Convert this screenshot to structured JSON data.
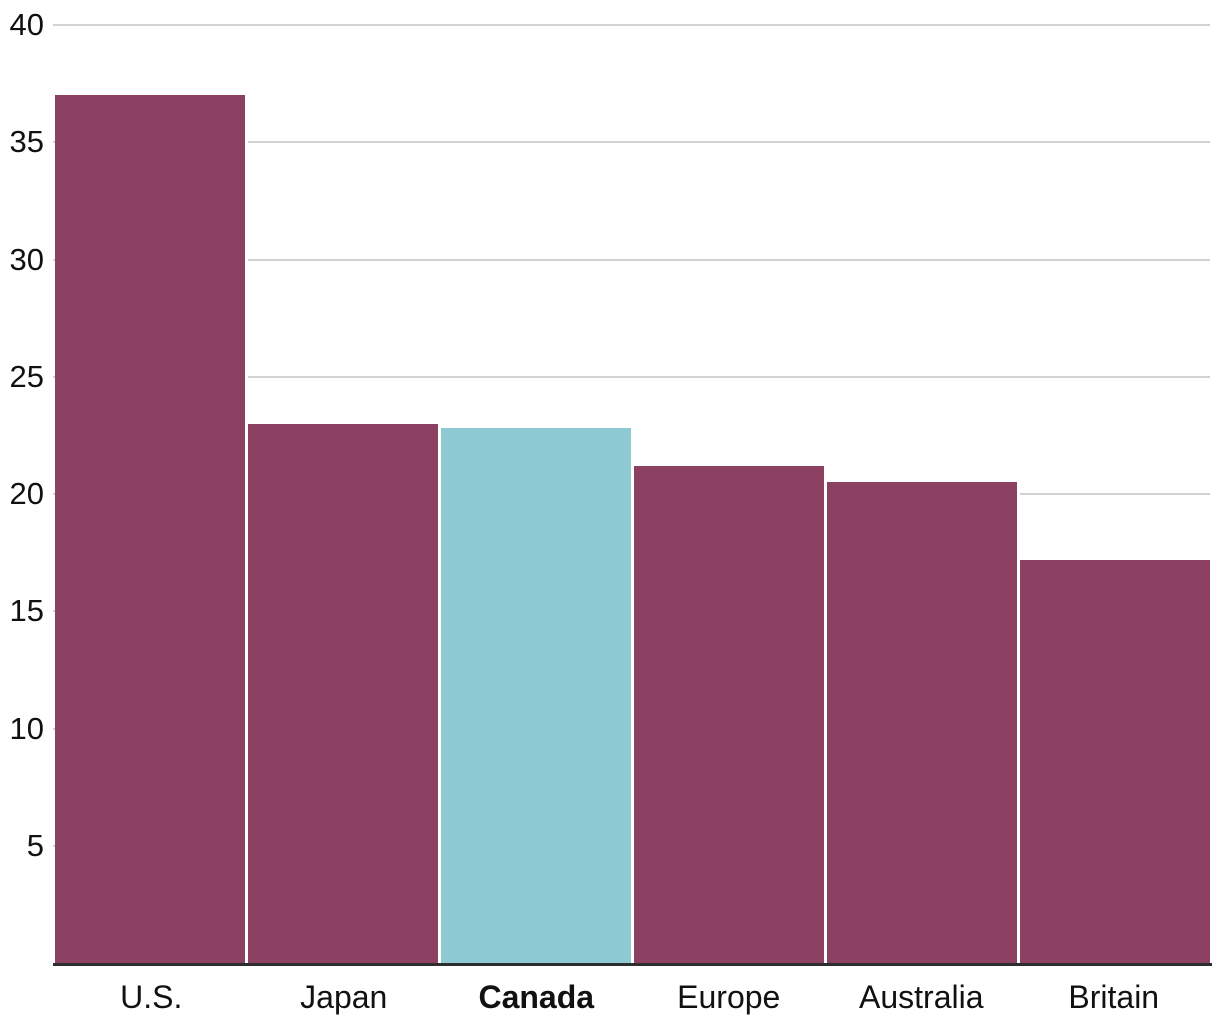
{
  "chart_data": {
    "type": "bar",
    "title": "",
    "xlabel": "",
    "ylabel": "",
    "categories": [
      "U.S.",
      "Japan",
      "Canada",
      "Europe",
      "Australia",
      "Britain"
    ],
    "values": [
      37,
      23,
      22.8,
      21.2,
      20.5,
      17.2
    ],
    "highlighted_category": "Canada",
    "highlighted_index": 2,
    "ylim": [
      0,
      40
    ],
    "yticks": [
      5,
      10,
      15,
      20,
      25,
      30,
      35,
      40
    ],
    "grid": "horizontal",
    "legend": "none",
    "colors": {
      "bar": "#8C4062",
      "highlight_bar": "#8ECAD4",
      "gridline": "#D2D2D2",
      "axis_line": "#2E2E2E",
      "label_text": "#111111"
    }
  }
}
